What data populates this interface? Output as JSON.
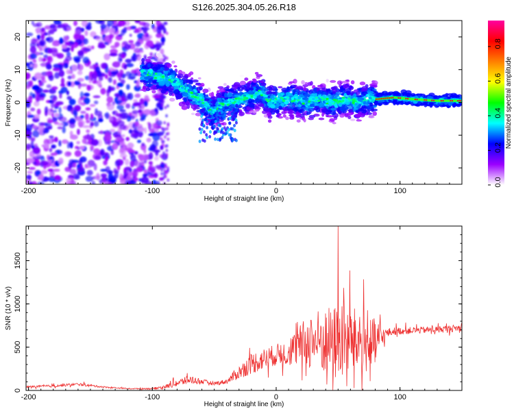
{
  "title": "S126.2025.304.05.26.R18",
  "chart_data": [
    {
      "type": "heatmap",
      "title": "S126.2025.304.05.26.R18",
      "xlabel": "Height of straight line (km)",
      "ylabel": "Frequency (Hz)",
      "xlim": [
        -202,
        150
      ],
      "ylim": [
        -25,
        25
      ],
      "xticks": [
        -200,
        -100,
        0,
        100
      ],
      "yticks": [
        -20,
        -10,
        0,
        10,
        20
      ],
      "colorbar": {
        "label": "Normalized spectral amplitude",
        "range": [
          0,
          0.95
        ],
        "ticks": [
          "0.0",
          "0.2",
          "0.4",
          "0.6",
          "0.8"
        ],
        "tick_values": [
          0,
          0.2,
          0.4,
          0.6,
          0.8
        ],
        "colors": [
          "#ffffff",
          "#9b00ff",
          "#0000ff",
          "#00ffff",
          "#00ff00",
          "#ffff00",
          "#ff8000",
          "#ff0000",
          "#ff00a0"
        ]
      },
      "ridge": {
        "x": [
          -108,
          -95,
          -85,
          -75,
          -65,
          -58,
          -52,
          -45,
          -38,
          -30,
          -20,
          -12,
          -5,
          5,
          15,
          25,
          35,
          45,
          55,
          65,
          75,
          82,
          95,
          110,
          130,
          150
        ],
        "y": [
          9,
          8,
          7,
          4,
          2,
          0,
          -3,
          -1,
          0,
          1,
          2,
          3,
          0,
          1,
          1,
          0,
          1,
          0,
          1,
          0,
          1,
          1,
          1.5,
          1,
          0.5,
          0.5
        ]
      },
      "noise_region_x": [
        -202,
        -100
      ]
    },
    {
      "type": "line",
      "xlabel": "Height of straight line (km)",
      "ylabel": "SNR (10 * v/v)",
      "xlim": [
        -202,
        150
      ],
      "ylim": [
        0,
        1900
      ],
      "xticks": [
        -200,
        -100,
        0,
        100
      ],
      "yticks": [
        0,
        500,
        1000,
        1500
      ],
      "color": "#ee3030",
      "envelope": {
        "x": [
          -202,
          -180,
          -160,
          -140,
          -120,
          -100,
          -90,
          -80,
          -70,
          -60,
          -50,
          -40,
          -30,
          -20,
          -10,
          0,
          10,
          20,
          30,
          40,
          50,
          60,
          70,
          80,
          88,
          95,
          110,
          130,
          150
        ],
        "base": [
          40,
          50,
          70,
          40,
          20,
          20,
          40,
          80,
          120,
          100,
          80,
          100,
          200,
          300,
          350,
          400,
          420,
          500,
          550,
          520,
          500,
          550,
          500,
          500,
          650,
          680,
          690,
          700,
          720
        ],
        "spread": [
          20,
          30,
          30,
          20,
          10,
          20,
          40,
          80,
          100,
          60,
          40,
          60,
          150,
          250,
          250,
          250,
          300,
          500,
          700,
          800,
          900,
          800,
          700,
          600,
          120,
          90,
          80,
          80,
          80
        ]
      },
      "peak": {
        "x": 50,
        "y": 1900
      }
    }
  ]
}
